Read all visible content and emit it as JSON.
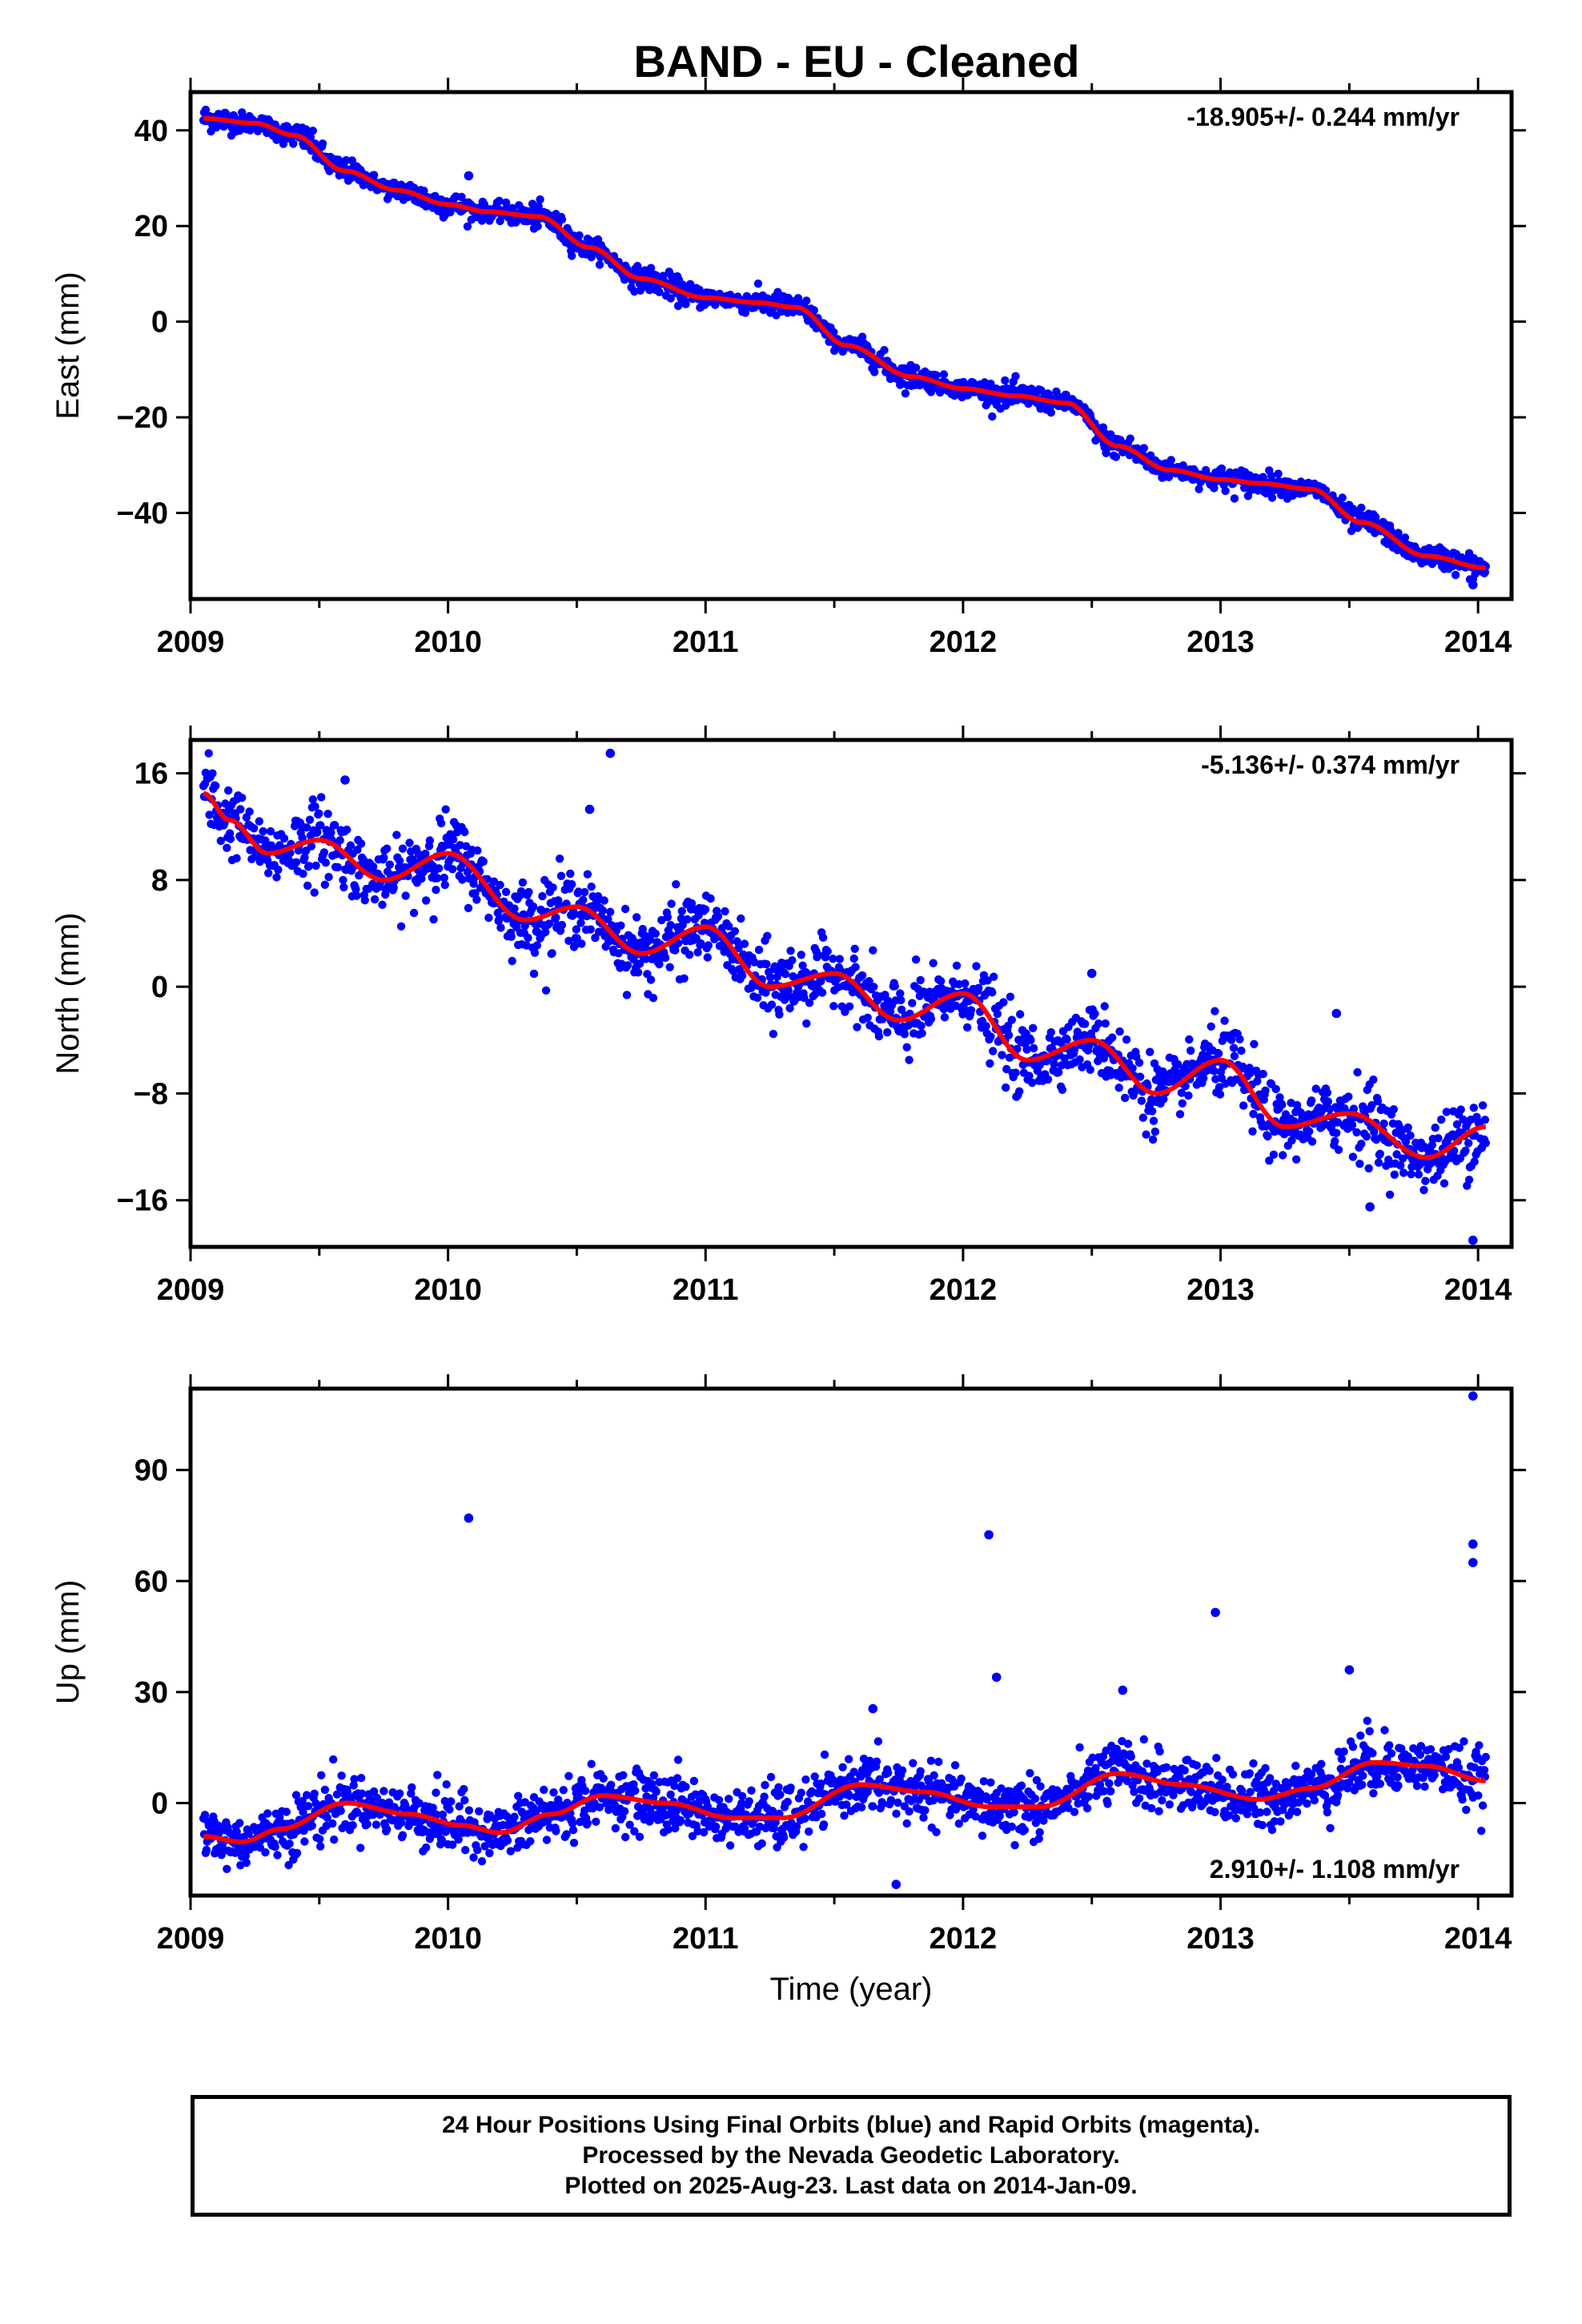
{
  "title": "BAND  - EU - Cleaned",
  "footer": {
    "lines": [
      "24 Hour Positions Using Final Orbits (blue) and Rapid Orbits (magenta).",
      "Processed by the Nevada Geodetic Laboratory.",
      "Plotted on 2025-Aug-23. Last data on 2014-Jan-09."
    ]
  },
  "colors": {
    "points": "#0000ff",
    "model": "#ff0000"
  },
  "chart_data": [
    {
      "type": "scatter",
      "ylabel": "East (mm)",
      "xlabel": "",
      "xlim": [
        2009.0,
        2014.13
      ],
      "ylim": [
        -58,
        48
      ],
      "xticks": [
        2009,
        2010,
        2011,
        2012,
        2013,
        2014
      ],
      "xtick_labels": [
        "2009",
        "2010",
        "2011",
        "2012",
        "2013",
        "2014"
      ],
      "yticks": [
        40,
        20,
        0,
        -20,
        -40
      ],
      "ytick_labels": [
        "40",
        "20",
        "0",
        "−20",
        "−40"
      ],
      "rate_label": "-18.905+/- 0.244 mm/yr",
      "rate_position": "top-right",
      "x_start": 2009.05,
      "x_end": 2014.03,
      "model_x": [
        2009.05,
        2009.25,
        2009.4,
        2009.6,
        2009.8,
        2010.0,
        2010.15,
        2010.35,
        2010.55,
        2010.75,
        2011.0,
        2011.2,
        2011.35,
        2011.55,
        2011.8,
        2012.0,
        2012.2,
        2012.4,
        2012.6,
        2012.8,
        2013.0,
        2013.15,
        2013.35,
        2013.55,
        2013.8,
        2014.03
      ],
      "model_y": [
        42.5,
        41.5,
        39.0,
        31.5,
        27.5,
        24.5,
        23.0,
        22.0,
        15.5,
        9.0,
        5.0,
        4.0,
        3.0,
        -5.0,
        -11.5,
        -14.0,
        -15.5,
        -17.0,
        -26.0,
        -31.0,
        -33.0,
        -33.8,
        -35.0,
        -42.0,
        -49.0,
        -51.5
      ],
      "noise": 1.3,
      "outliers": [
        [
          2010.08,
          30.5
        ],
        [
          2013.98,
          -55
        ],
        [
          2013.72,
          -47
        ]
      ]
    },
    {
      "type": "scatter",
      "ylabel": "North (mm)",
      "xlabel": "",
      "xlim": [
        2009.0,
        2014.13
      ],
      "ylim": [
        -19.5,
        18.5
      ],
      "xticks": [
        2009,
        2010,
        2011,
        2012,
        2013,
        2014
      ],
      "xtick_labels": [
        "2009",
        "2010",
        "2011",
        "2012",
        "2013",
        "2014"
      ],
      "yticks": [
        16,
        8,
        0,
        -8,
        -16
      ],
      "ytick_labels": [
        "16",
        "8",
        "0",
        "−8",
        "−16"
      ],
      "rate_label": "-5.136+/- 0.374 mm/yr",
      "rate_position": "top-right",
      "x_start": 2009.05,
      "x_end": 2014.03,
      "model_x": [
        2009.05,
        2009.15,
        2009.3,
        2009.5,
        2009.75,
        2010.0,
        2010.3,
        2010.5,
        2010.75,
        2011.0,
        2011.25,
        2011.5,
        2011.75,
        2012.0,
        2012.25,
        2012.5,
        2012.75,
        2013.0,
        2013.25,
        2013.5,
        2013.8,
        2014.03
      ],
      "model_y": [
        14.5,
        12.5,
        10.0,
        11.0,
        8.0,
        10.0,
        5.0,
        6.0,
        2.5,
        4.5,
        0.0,
        1.0,
        -2.5,
        -0.5,
        -5.5,
        -4.0,
        -8.0,
        -5.5,
        -10.5,
        -9.5,
        -12.8,
        -10.5
      ],
      "noise": 1.5,
      "outliers": [
        [
          2010.63,
          17.5
        ],
        [
          2010.55,
          13.3
        ],
        [
          2013.58,
          -16.5
        ],
        [
          2013.98,
          -19
        ],
        [
          2009.6,
          15.5
        ],
        [
          2012.5,
          1.0
        ],
        [
          2013.45,
          -2.0
        ]
      ]
    },
    {
      "type": "scatter",
      "ylabel": "Up (mm)",
      "xlabel": "Time (year)",
      "xlim": [
        2009.0,
        2014.13
      ],
      "ylim": [
        -25,
        112
      ],
      "xticks": [
        2009,
        2010,
        2011,
        2012,
        2013,
        2014
      ],
      "xtick_labels": [
        "2009",
        "2010",
        "2011",
        "2012",
        "2013",
        "2014"
      ],
      "yticks": [
        90,
        60,
        30,
        0
      ],
      "ytick_labels": [
        "90",
        "60",
        "30",
        "0"
      ],
      "rate_label": "2.910+/- 1.108 mm/yr",
      "rate_position": "bottom-right",
      "x_start": 2009.05,
      "x_end": 2014.03,
      "model_x": [
        2009.05,
        2009.2,
        2009.35,
        2009.6,
        2009.85,
        2010.05,
        2010.2,
        2010.4,
        2010.6,
        2010.85,
        2011.1,
        2011.3,
        2011.6,
        2011.85,
        2012.1,
        2012.3,
        2012.6,
        2012.85,
        2013.15,
        2013.35,
        2013.6,
        2013.8,
        2014.03
      ],
      "model_y": [
        -9,
        -10.5,
        -7,
        0,
        -3,
        -6,
        -8,
        -3,
        2,
        0,
        -4,
        -4,
        5,
        3,
        -1,
        -1,
        8,
        5,
        1,
        4,
        11,
        10,
        6
      ],
      "noise": 4.5,
      "outliers": [
        [
          2010.08,
          77
        ],
        [
          2012.1,
          72.5
        ],
        [
          2012.13,
          34
        ],
        [
          2012.98,
          51.5
        ],
        [
          2013.5,
          36
        ],
        [
          2013.98,
          110
        ],
        [
          2013.98,
          70
        ],
        [
          2013.98,
          65
        ],
        [
          2011.74,
          -22
        ],
        [
          2012.62,
          30.5
        ],
        [
          2011.65,
          25.5
        ]
      ]
    }
  ]
}
